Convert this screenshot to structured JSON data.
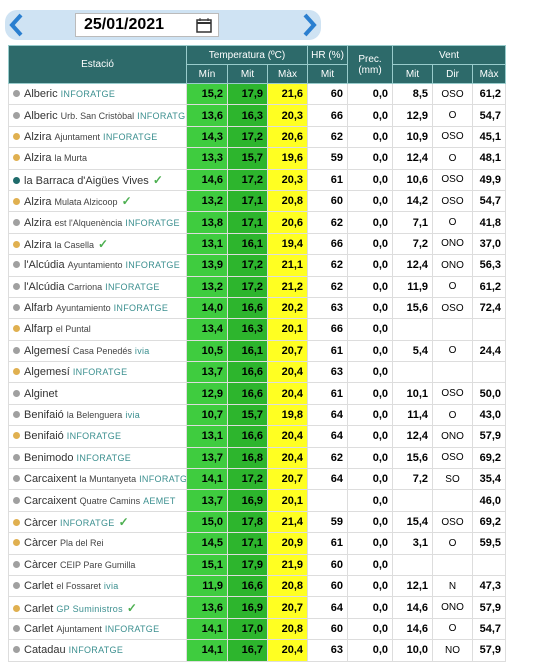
{
  "header": {
    "date": "25/01/2021"
  },
  "table": {
    "group_headers": [
      "Estació",
      "Temperatura (ºC)",
      "HR (%)",
      "Prec. (mm)",
      "Vent"
    ],
    "sub_headers": [
      "Mín",
      "Mit",
      "Màx",
      "Mit",
      "Mit",
      "Dir",
      "Màx"
    ],
    "rows": [
      {
        "station": "Alberic",
        "location": "",
        "source": "INFORATGE",
        "check": false,
        "dot": "#a0a0a0",
        "cells": [
          "15,2",
          "17,9",
          "21,6",
          "60",
          "0,0",
          "8,5",
          "OSO",
          "61,2"
        ]
      },
      {
        "station": "Alberic",
        "location": "Urb. San Cristòbal",
        "source": "INFORATGE",
        "check": false,
        "dot": "#a0a0a0",
        "cells": [
          "13,6",
          "16,3",
          "20,3",
          "66",
          "0,0",
          "12,9",
          "O",
          "54,7"
        ]
      },
      {
        "station": "Alzira",
        "location": "Ajuntament",
        "source": "INFORATGE",
        "check": false,
        "dot": "#e0b050",
        "cells": [
          "14,3",
          "17,2",
          "20,6",
          "62",
          "0,0",
          "10,9",
          "OSO",
          "45,1"
        ]
      },
      {
        "station": "Alzira",
        "location": "la Murta",
        "source": "",
        "check": false,
        "dot": "#e0b050",
        "cells": [
          "13,3",
          "15,7",
          "19,6",
          "59",
          "0,0",
          "12,4",
          "O",
          "48,1"
        ]
      },
      {
        "station": "la Barraca d'Aigües Vives",
        "location": "",
        "source": "",
        "check": true,
        "dot": "#1f6b6b",
        "cells": [
          "14,6",
          "17,2",
          "20,3",
          "61",
          "0,0",
          "10,6",
          "OSO",
          "49,9"
        ]
      },
      {
        "station": "Alzira",
        "location": "Mulata Alzicoop",
        "source": "",
        "check": true,
        "dot": "#e0b050",
        "cells": [
          "13,2",
          "17,1",
          "20,8",
          "60",
          "0,0",
          "14,2",
          "OSO",
          "54,7"
        ]
      },
      {
        "station": "Alzira",
        "location": "est l'Alquenència",
        "source": "INFORATGE",
        "check": false,
        "dot": "#a0a0a0",
        "cells": [
          "13,8",
          "17,1",
          "20,6",
          "62",
          "0,0",
          "7,1",
          "O",
          "41,8"
        ]
      },
      {
        "station": "Alzira",
        "location": "la Casella",
        "source": "",
        "check": true,
        "dot": "#e0b050",
        "cells": [
          "13,1",
          "16,1",
          "19,4",
          "66",
          "0,0",
          "7,2",
          "ONO",
          "37,0"
        ]
      },
      {
        "station": "l'Alcúdia",
        "location": "Ayuntamiento",
        "source": "INFORATGE",
        "check": false,
        "dot": "#a0a0a0",
        "cells": [
          "13,9",
          "17,2",
          "21,1",
          "62",
          "0,0",
          "12,4",
          "ONO",
          "56,3"
        ]
      },
      {
        "station": "l'Alcúdia",
        "location": "Carriona",
        "source": "INFORATGE",
        "check": false,
        "dot": "#a0a0a0",
        "cells": [
          "13,2",
          "17,2",
          "21,2",
          "62",
          "0,0",
          "11,9",
          "O",
          "61,2"
        ]
      },
      {
        "station": "Alfarb",
        "location": "Ayuntamiento",
        "source": "INFORATGE",
        "check": false,
        "dot": "#a0a0a0",
        "cells": [
          "14,0",
          "16,6",
          "20,2",
          "63",
          "0,0",
          "15,6",
          "OSO",
          "72,4"
        ]
      },
      {
        "station": "Alfarp",
        "location": "el Puntal",
        "source": "",
        "check": false,
        "dot": "#e0b050",
        "cells": [
          "13,4",
          "16,3",
          "20,1",
          "66",
          "0,0",
          null,
          null,
          null
        ]
      },
      {
        "station": "Algemesí",
        "location": "Casa Penedés",
        "source": "ivia",
        "check": false,
        "dot": "#a0a0a0",
        "cells": [
          "10,5",
          "16,1",
          "20,7",
          "61",
          "0,0",
          "5,4",
          "O",
          "24,4"
        ]
      },
      {
        "station": "Algemesí",
        "location": "",
        "source": "INFORATGE",
        "check": false,
        "dot": "#e0b050",
        "cells": [
          "13,7",
          "16,6",
          "20,4",
          "63",
          "0,0",
          null,
          null,
          null
        ]
      },
      {
        "station": "Alginet",
        "location": "",
        "source": "",
        "check": false,
        "dot": "#a0a0a0",
        "cells": [
          "12,9",
          "16,6",
          "20,4",
          "61",
          "0,0",
          "10,1",
          "OSO",
          "50,0"
        ]
      },
      {
        "station": "Benifaió",
        "location": "la Belenguera",
        "source": "ivia",
        "check": false,
        "dot": "#a0a0a0",
        "cells": [
          "10,7",
          "15,7",
          "19,8",
          "64",
          "0,0",
          "11,4",
          "O",
          "43,0"
        ]
      },
      {
        "station": "Benifaió",
        "location": "",
        "source": "INFORATGE",
        "check": false,
        "dot": "#e0b050",
        "cells": [
          "13,1",
          "16,6",
          "20,4",
          "64",
          "0,0",
          "12,4",
          "ONO",
          "57,9"
        ]
      },
      {
        "station": "Benimodo",
        "location": "",
        "source": "INFORATGE",
        "check": false,
        "dot": "#a0a0a0",
        "cells": [
          "13,7",
          "16,8",
          "20,4",
          "62",
          "0,0",
          "15,6",
          "OSO",
          "69,2"
        ]
      },
      {
        "station": "Carcaixent",
        "location": "la Muntanyeta",
        "source": "INFORATGE",
        "check": false,
        "dot": "#a0a0a0",
        "cells": [
          "14,1",
          "17,2",
          "20,7",
          "64",
          "0,0",
          "7,2",
          "SO",
          "35,4"
        ]
      },
      {
        "station": "Carcaixent",
        "location": "Quatre Camins",
        "source": "AEMET",
        "check": false,
        "dot": "#a0a0a0",
        "cells": [
          "13,7",
          "16,9",
          "20,1",
          null,
          "0,0",
          null,
          null,
          "46,0"
        ]
      },
      {
        "station": "Càrcer",
        "location": "",
        "source": "INFORATGE",
        "check": true,
        "dot": "#e0b050",
        "cells": [
          "15,0",
          "17,8",
          "21,4",
          "59",
          "0,0",
          "15,4",
          "OSO",
          "69,2"
        ]
      },
      {
        "station": "Càrcer",
        "location": "Pla del Rei",
        "source": "",
        "check": false,
        "dot": "#e0b050",
        "cells": [
          "14,5",
          "17,1",
          "20,9",
          "61",
          "0,0",
          "3,1",
          "O",
          "59,5"
        ]
      },
      {
        "station": "Càrcer",
        "location": "CEIP Pare Gumilla",
        "source": "",
        "check": false,
        "dot": "#a0a0a0",
        "cells": [
          "15,1",
          "17,9",
          "21,9",
          "60",
          "0,0",
          null,
          null,
          null
        ]
      },
      {
        "station": "Carlet",
        "location": "el Fossaret",
        "source": "ivia",
        "check": false,
        "dot": "#a0a0a0",
        "cells": [
          "11,9",
          "16,6",
          "20,8",
          "60",
          "0,0",
          "12,1",
          "N",
          "47,3"
        ]
      },
      {
        "station": "Carlet",
        "location": "",
        "source": "GP Suministros",
        "check": true,
        "dot": "#e0b050",
        "cells": [
          "13,6",
          "16,9",
          "20,7",
          "64",
          "0,0",
          "14,6",
          "ONO",
          "57,9"
        ]
      },
      {
        "station": "Carlet",
        "location": "Ajuntament",
        "source": "INFORATGE",
        "check": false,
        "dot": "#a0a0a0",
        "cells": [
          "14,1",
          "17,0",
          "20,8",
          "60",
          "0,0",
          "14,6",
          "O",
          "54,7"
        ]
      },
      {
        "station": "Catadau",
        "location": "",
        "source": "INFORATGE",
        "check": false,
        "dot": "#a0a0a0",
        "cells": [
          "14,1",
          "16,7",
          "20,4",
          "63",
          "0,0",
          "10,0",
          "NO",
          "57,9"
        ]
      }
    ]
  }
}
